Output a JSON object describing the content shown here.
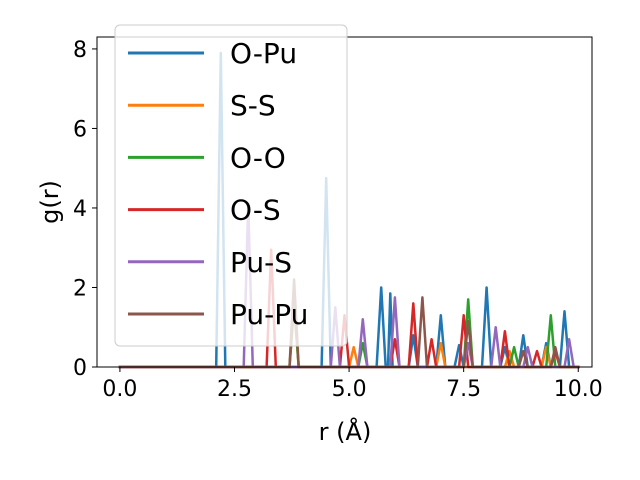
{
  "chart_data": {
    "type": "line",
    "xlabel": "r (Å)",
    "ylabel": "g(r)",
    "xlim": [
      -0.5,
      10.3
    ],
    "ylim": [
      0,
      8.3
    ],
    "xticks": [
      0.0,
      2.5,
      5.0,
      7.5,
      10.0
    ],
    "xtick_labels": [
      "0.0",
      "2.5",
      "5.0",
      "7.5",
      "10.0"
    ],
    "yticks": [
      0,
      2,
      4,
      6,
      8
    ],
    "ytick_labels": [
      "0",
      "2",
      "4",
      "6",
      "8"
    ],
    "grid": false,
    "legend_position": "upper-left",
    "series": [
      {
        "name": "O-Pu",
        "color": "#1f77b4",
        "x": [
          0.0,
          2.1,
          2.2,
          2.3,
          2.4,
          4.4,
          4.5,
          4.6,
          5.6,
          5.7,
          5.8,
          5.85,
          5.9,
          5.95,
          6.0,
          6.1,
          6.3,
          6.4,
          6.5,
          6.9,
          7.0,
          7.1,
          7.3,
          7.4,
          7.5,
          7.9,
          8.0,
          8.1,
          8.3,
          8.4,
          8.5,
          8.7,
          8.8,
          8.9,
          9.2,
          9.3,
          9.4,
          9.6,
          9.7,
          9.8,
          10.0
        ],
        "y": [
          0,
          0,
          7.9,
          0,
          0,
          0,
          4.75,
          0,
          0,
          2.0,
          0,
          0,
          1.85,
          0,
          0,
          0,
          0,
          0.8,
          0,
          0,
          1.3,
          0,
          0,
          0.55,
          0,
          0,
          2.0,
          0,
          0,
          0.5,
          0,
          0,
          0.8,
          0,
          0,
          0.6,
          0,
          0,
          1.4,
          0,
          0
        ]
      },
      {
        "name": "S-S",
        "color": "#ff7f0e",
        "x": [
          0.0,
          3.7,
          3.8,
          3.9,
          5.0,
          5.1,
          5.2,
          6.9,
          7.0,
          7.1,
          8.4,
          8.5,
          8.6,
          9.2,
          9.3,
          9.4,
          10.0
        ],
        "y": [
          0,
          0,
          1.5,
          0,
          0,
          0.5,
          0,
          0,
          0.6,
          0,
          0,
          0.4,
          0,
          0,
          0.5,
          0,
          0
        ]
      },
      {
        "name": "O-O",
        "color": "#2ca02c",
        "x": [
          0.0,
          3.7,
          3.8,
          3.9,
          5.2,
          5.3,
          5.4,
          7.5,
          7.6,
          7.7,
          8.5,
          8.6,
          8.7,
          9.3,
          9.4,
          9.5,
          10.0
        ],
        "y": [
          0,
          0,
          1.6,
          0,
          0,
          0.6,
          0,
          0,
          1.7,
          0,
          0,
          0.5,
          0,
          0,
          1.3,
          0,
          0
        ]
      },
      {
        "name": "O-S",
        "color": "#d62728",
        "x": [
          0.0,
          3.2,
          3.3,
          3.4,
          4.8,
          4.9,
          5.0,
          5.9,
          6.0,
          6.1,
          6.3,
          6.4,
          6.5,
          6.7,
          6.8,
          6.9,
          7.4,
          7.5,
          7.6,
          8.3,
          8.4,
          8.5,
          9.0,
          9.1,
          9.2,
          9.4,
          9.5,
          9.6,
          10.0
        ],
        "y": [
          0,
          0,
          2.95,
          0,
          0,
          1.3,
          0,
          0,
          0.7,
          0,
          0,
          1.6,
          0,
          0,
          0.7,
          0,
          0,
          1.3,
          0,
          0,
          0.9,
          0,
          0,
          0.4,
          0,
          0,
          0.4,
          0,
          0
        ]
      },
      {
        "name": "Pu-S",
        "color": "#9467bd",
        "x": [
          0.0,
          2.7,
          2.8,
          2.9,
          4.6,
          4.7,
          4.8,
          5.2,
          5.3,
          5.4,
          5.9,
          6.0,
          6.1,
          7.5,
          7.6,
          7.7,
          8.1,
          8.2,
          8.3,
          8.8,
          8.9,
          9.0,
          9.7,
          9.8,
          9.9,
          10.0
        ],
        "y": [
          0,
          0,
          4.1,
          0,
          0,
          1.5,
          0,
          0,
          1.2,
          0,
          0,
          1.75,
          0,
          0,
          0.6,
          0,
          0,
          1.0,
          0,
          0,
          0.5,
          0,
          0,
          0.7,
          0,
          0
        ]
      },
      {
        "name": "Pu-Pu",
        "color": "#8c564b",
        "x": [
          0.0,
          3.7,
          3.8,
          3.9,
          6.5,
          6.6,
          6.7,
          7.5,
          7.6,
          7.7,
          8.7,
          8.8,
          8.9,
          9.4,
          9.5,
          9.6,
          10.0
        ],
        "y": [
          0,
          0,
          2.2,
          0,
          0,
          1.75,
          0,
          0,
          1.15,
          0,
          0,
          0.4,
          0,
          0,
          0.5,
          0,
          0
        ]
      }
    ]
  }
}
